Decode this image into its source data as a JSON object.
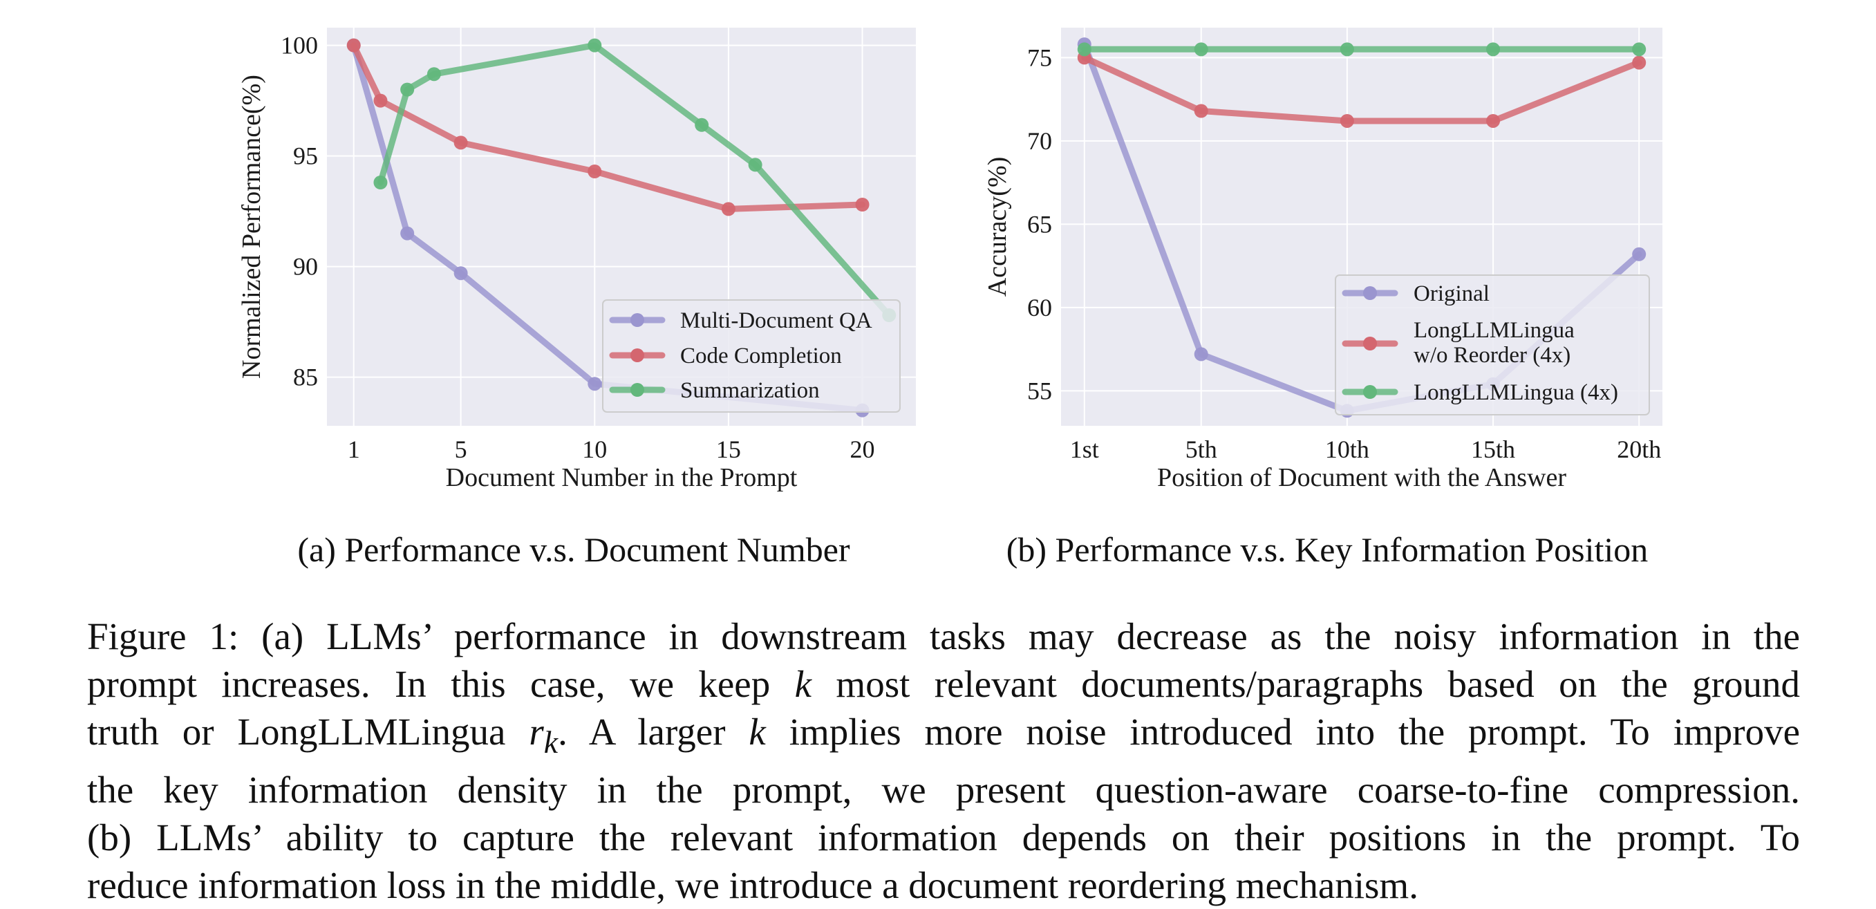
{
  "figure": {
    "caption_lines": [
      "Figure 1: (a) LLMs’ performance in downstream tasks may decrease as the noisy information in the",
      "prompt increases. In this case, we keep k most relevant documents/paragraphs based on the ground",
      "truth or LongLLMLingua r_k. A larger k implies more noise introduced into the prompt. To improve",
      "the key information density in the prompt, we present question-aware coarse-to-fine compression.",
      "(b) LLMs’ ability to capture the relevant information depends on their positions in the prompt. To",
      "reduce information loss in the middle, we introduce a document reordering mechanism."
    ],
    "caption_parts": {
      "l1": "Figure 1: (a) LLMs’ performance in downstream tasks may decrease as the noisy information in the",
      "l2a": "prompt increases. In this case, we keep ",
      "l2k": "k",
      "l2b": " most relevant documents/paragraphs based on the ground",
      "l3a": "truth or LongLLMLingua ",
      "l3r": "r",
      "l3sub": "k",
      "l3b": ". A larger ",
      "l3k": "k",
      "l3c": " implies more noise introduced into the prompt. To improve",
      "l4": "the key information density in the prompt, we present question-aware coarse-to-fine compression.",
      "l5": "(b) LLMs’ ability to capture the relevant information depends on their positions in the prompt. To",
      "l6": "reduce information loss in the middle, we introduce a document reordering mechanism."
    }
  },
  "colors": {
    "panel_bg": "#eaeaf2",
    "grid": "#ffffff",
    "purple": "#9a95cf",
    "red": "#d4666f",
    "green": "#62b77c"
  },
  "chart_data": [
    {
      "type": "line",
      "subcaption": "(a) Performance v.s. Document Number",
      "xlabel": "Document Number in the Prompt",
      "ylabel": "Normalized Performance(%)",
      "xlim": [
        0,
        22
      ],
      "ylim": [
        82.8,
        100.8
      ],
      "xticks": [
        1,
        5,
        10,
        15,
        20
      ],
      "xtick_labels": [
        "1",
        "5",
        "10",
        "15",
        "20"
      ],
      "yticks": [
        85,
        90,
        95,
        100
      ],
      "ytick_labels": [
        "85",
        "90",
        "95",
        "100"
      ],
      "legend": {
        "position": "lower-right"
      },
      "series": [
        {
          "name": "Multi-Document QA",
          "color_key": "purple",
          "x": [
            1,
            3,
            5,
            10,
            20
          ],
          "y": [
            100,
            91.5,
            89.7,
            84.7,
            83.5
          ]
        },
        {
          "name": "Code Completion",
          "color_key": "red",
          "x": [
            1,
            2,
            5,
            10,
            15,
            20
          ],
          "y": [
            100,
            97.5,
            95.6,
            94.3,
            92.6,
            92.8
          ]
        },
        {
          "name": "Summarization",
          "color_key": "green",
          "x": [
            2,
            3,
            4,
            10,
            14,
            16,
            21
          ],
          "y": [
            93.8,
            98,
            98.7,
            100,
            96.4,
            94.6,
            87.8
          ]
        }
      ]
    },
    {
      "type": "line",
      "subcaption": "(b) Performance v.s. Key Information Position",
      "xlabel": "Position of Document with the Answer",
      "ylabel": "Accuracy(%)",
      "xlim": [
        0.2,
        20.8
      ],
      "ylim": [
        52.9,
        76.8
      ],
      "xticks": [
        1,
        5,
        10,
        15,
        20
      ],
      "xtick_labels": [
        "1st",
        "5th",
        "10th",
        "15th",
        "20th"
      ],
      "yticks": [
        55,
        60,
        65,
        70,
        75
      ],
      "ytick_labels": [
        "55",
        "60",
        "65",
        "70",
        "75"
      ],
      "legend": {
        "position": "lower-right"
      },
      "series": [
        {
          "name": "Original",
          "color_key": "purple",
          "x": [
            1,
            5,
            10,
            15,
            20
          ],
          "y": [
            75.8,
            57.2,
            53.8,
            55.4,
            63.2
          ]
        },
        {
          "name": "LongLLMLingua w/o Reorder (4x)",
          "name_lines": [
            "LongLLMLingua",
            "w/o Reorder (4x)"
          ],
          "color_key": "red",
          "x": [
            1,
            5,
            10,
            15,
            20
          ],
          "y": [
            75.0,
            71.8,
            71.2,
            71.2,
            74.7
          ]
        },
        {
          "name": "LongLLMLingua (4x)",
          "color_key": "green",
          "x": [
            1,
            5,
            10,
            15,
            20
          ],
          "y": [
            75.5,
            75.5,
            75.5,
            75.5,
            75.5
          ]
        }
      ]
    }
  ]
}
